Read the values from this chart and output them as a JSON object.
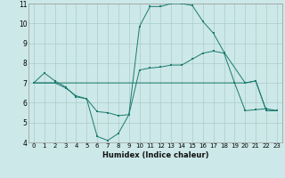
{
  "xlabel": "Humidex (Indice chaleur)",
  "bg_color": "#cde8e8",
  "grid_color": "#aacccc",
  "line_color": "#1a7a6e",
  "xlim": [
    -0.5,
    23.5
  ],
  "ylim": [
    4,
    11
  ],
  "xticks": [
    0,
    1,
    2,
    3,
    4,
    5,
    6,
    7,
    8,
    9,
    10,
    11,
    12,
    13,
    14,
    15,
    16,
    17,
    18,
    19,
    20,
    21,
    22,
    23
  ],
  "yticks": [
    4,
    5,
    6,
    7,
    8,
    9,
    10,
    11
  ],
  "series1_x": [
    0,
    1,
    2,
    3,
    4,
    5,
    6,
    7,
    8,
    9,
    10,
    11,
    12,
    13,
    14,
    15,
    16,
    17,
    18,
    19,
    20,
    21,
    22,
    23
  ],
  "series1_y": [
    7.0,
    7.5,
    7.1,
    6.8,
    6.3,
    6.2,
    5.55,
    5.5,
    5.35,
    5.4,
    7.65,
    7.75,
    7.8,
    7.9,
    7.9,
    8.2,
    8.5,
    8.6,
    8.5,
    7.0,
    5.6,
    5.65,
    5.7,
    5.6
  ],
  "series2_x": [
    0,
    1,
    2,
    3,
    4,
    5,
    6,
    7,
    8,
    9,
    10,
    11,
    12,
    13,
    14,
    15,
    16,
    17,
    18,
    19,
    20,
    21,
    22,
    23
  ],
  "series2_y": [
    7.0,
    7.0,
    7.0,
    7.0,
    7.0,
    7.0,
    7.0,
    7.0,
    7.0,
    7.0,
    7.0,
    7.0,
    7.0,
    7.0,
    7.0,
    7.0,
    7.0,
    7.0,
    7.0,
    7.0,
    7.0,
    7.1,
    5.6,
    5.6
  ],
  "series3_x": [
    0,
    2,
    3,
    4,
    5,
    6,
    7,
    8,
    9,
    10,
    11,
    12,
    13,
    14,
    15,
    16,
    17,
    18,
    20,
    21,
    22,
    23
  ],
  "series3_y": [
    7.0,
    7.0,
    6.75,
    6.35,
    6.2,
    4.3,
    4.1,
    4.45,
    5.4,
    9.85,
    10.85,
    10.85,
    11.0,
    11.0,
    10.9,
    10.1,
    9.5,
    8.55,
    7.0,
    7.1,
    5.6,
    5.6
  ]
}
